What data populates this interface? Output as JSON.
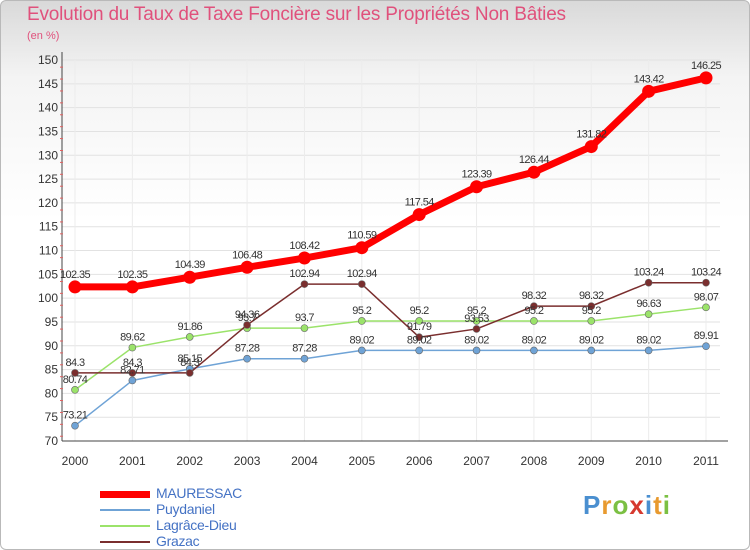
{
  "header": {
    "title": "Evolution du Taux de Taxe Foncière sur les Propriétés Non Bâties",
    "unit": "(en %)"
  },
  "logo": {
    "letters": [
      "P",
      "r",
      "o",
      "x",
      "i",
      "t",
      "i"
    ],
    "colors": [
      "#4a8fd0",
      "#e89a2f",
      "#7bc043",
      "#d6392f",
      "#4a8fd0",
      "#e89a2f",
      "#7bc043"
    ]
  },
  "chart_data": {
    "type": "line",
    "title": "Evolution du Taux de Taxe Foncière sur les Propriétés Non Bâties",
    "ylabel": "(en %)",
    "xlabel": "",
    "x": [
      "2000",
      "2001",
      "2002",
      "2003",
      "2004",
      "2005",
      "2006",
      "2007",
      "2008",
      "2009",
      "2010",
      "2011"
    ],
    "ylim": [
      70,
      150
    ],
    "yticks": [
      70,
      75,
      80,
      85,
      90,
      95,
      100,
      105,
      110,
      115,
      120,
      125,
      130,
      135,
      140,
      145,
      150
    ],
    "grid": true,
    "legend_position": "bottom-left",
    "series": [
      {
        "name": "MAURESSAC",
        "color": "#ff0000",
        "values": [
          102.35,
          102.35,
          104.39,
          106.48,
          108.42,
          110.59,
          117.54,
          123.39,
          126.44,
          131.82,
          143.42,
          146.25
        ],
        "labels": [
          "102.35",
          "102.35",
          "104.39",
          "106.48",
          "108.42",
          "110.59",
          "117.54",
          "123.39",
          "126.44",
          "131.82",
          "143.42",
          "146.25"
        ]
      },
      {
        "name": "Puydaniel",
        "color": "#6fa3d6",
        "values": [
          73.21,
          82.71,
          85.15,
          87.28,
          87.28,
          89.02,
          89.02,
          89.02,
          89.02,
          89.02,
          89.02,
          89.91
        ],
        "labels": [
          "73.21",
          "82.71",
          "85.15",
          "87.28",
          "87.28",
          "89.02",
          "89.02",
          "89.02",
          "89.02",
          "89.02",
          "89.02",
          "89.91"
        ]
      },
      {
        "name": "Lagrâce-Dieu",
        "color": "#9be36a",
        "values": [
          80.74,
          89.62,
          91.86,
          93.7,
          93.7,
          95.2,
          95.2,
          95.2,
          95.2,
          95.2,
          96.63,
          98.07
        ],
        "labels": [
          "80.74",
          "89.62",
          "91.86",
          "93.7",
          "93.7",
          "95.2",
          "95.2",
          "95.2",
          "95.2",
          "95.2",
          "96.63",
          "98.07"
        ]
      },
      {
        "name": "Grazac",
        "color": "#7a2e2e",
        "values": [
          84.3,
          84.3,
          84.3,
          94.36,
          102.94,
          102.94,
          91.79,
          93.53,
          98.32,
          98.32,
          103.24,
          103.24
        ],
        "labels": [
          "84.3",
          "84.3",
          "84.3",
          "94.36",
          "102.94",
          "102.94",
          "91.79",
          "93.53",
          "98.32",
          "98.32",
          "103.24",
          "103.24"
        ]
      }
    ]
  }
}
